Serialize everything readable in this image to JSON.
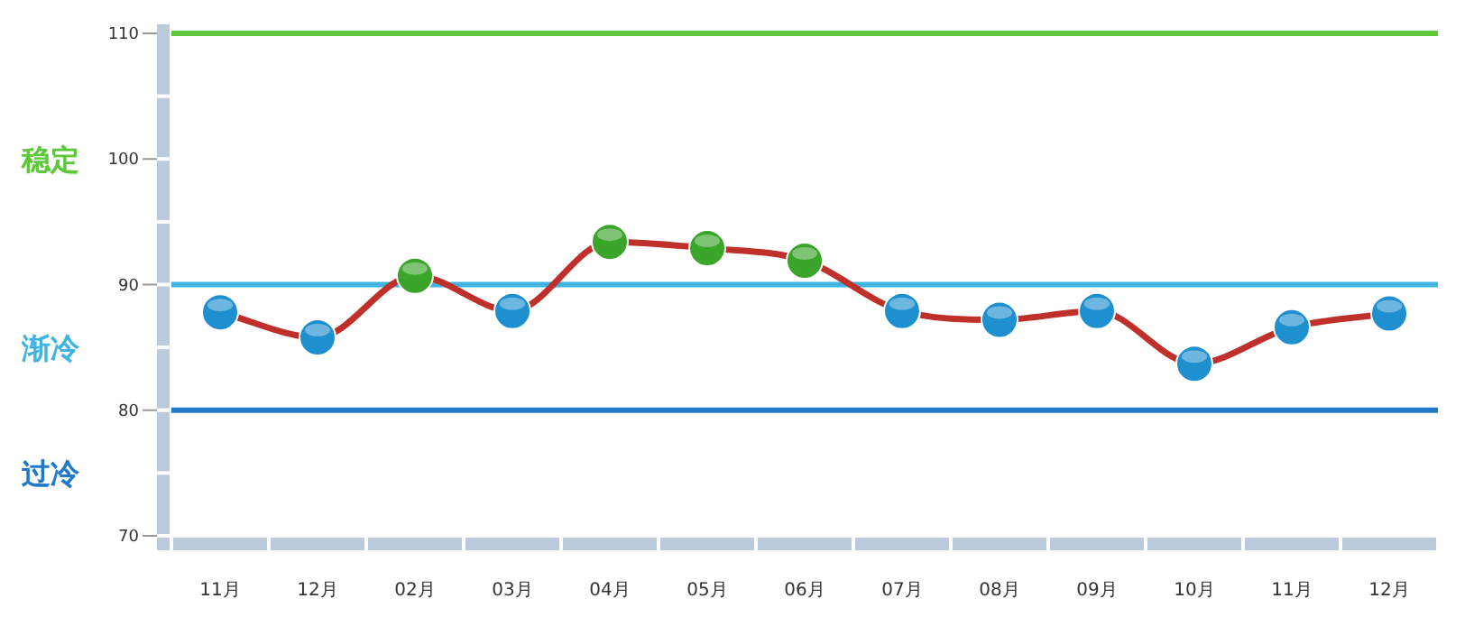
{
  "chart_data": {
    "type": "line",
    "categories": [
      "11月",
      "12月",
      "02月",
      "03月",
      "04月",
      "05月",
      "06月",
      "07月",
      "08月",
      "09月",
      "10月",
      "11月",
      "12月"
    ],
    "series": [
      {
        "color": "#c0302a",
        "colors": [
          "#1e90d0",
          "#1e90d0",
          "#3aa52a",
          "#1e90d0",
          "#3aa52a",
          "#3aa52a",
          "#3aa52a",
          "#1e90d0",
          "#1e90d0",
          "#1e90d0",
          "#1e90d0",
          "#1e90d0",
          "#1e90d0"
        ],
        "values": [
          87.8,
          85.8,
          90.7,
          87.9,
          93.4,
          92.9,
          91.9,
          87.9,
          87.2,
          87.9,
          83.7,
          86.6,
          87.7
        ]
      }
    ],
    "ylim": [
      70,
      110
    ],
    "yticks": [
      70,
      80,
      90,
      100,
      110
    ],
    "ref_lines": [
      {
        "axis": "y",
        "value": 110,
        "color": "#5cc83a"
      },
      {
        "axis": "y",
        "value": 90,
        "color": "#3fb4e0"
      },
      {
        "axis": "y",
        "value": 80,
        "color": "#1f78c8"
      }
    ],
    "annotations": [
      "稳定",
      "渐冷",
      "过冷"
    ],
    "marker": "circle",
    "grid": false
  }
}
